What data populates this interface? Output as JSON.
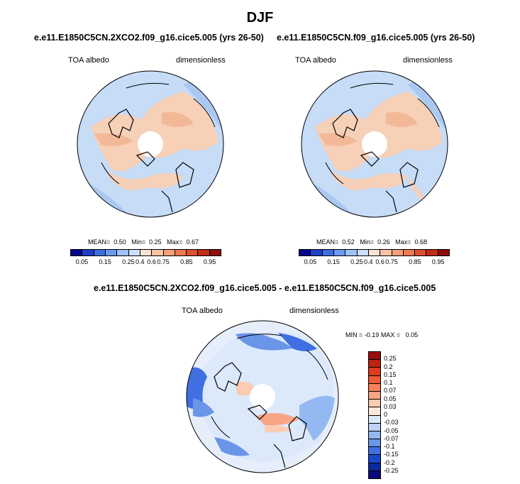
{
  "title": "DJF",
  "panels": [
    {
      "case": "e.e11.E1850C5CN.2XCO2.f09_g16.cice5.005 (yrs 26-50)",
      "variable": "TOA albedo",
      "units": "dimensionless",
      "stats": {
        "mean_label": "MEAN=",
        "mean": "0.50",
        "min_label": "Min=",
        "min": "0.25",
        "max_label": "Max=",
        "max": "0.67"
      }
    },
    {
      "case": "e.e11.E1850C5CN.f09_g16.cice5.005 (yrs 26-50)",
      "variable": "TOA albedo",
      "units": "dimensionless",
      "stats": {
        "mean_label": "MEAN=",
        "mean": "0.52",
        "min_label": "Min=",
        "min": "0.26",
        "max_label": "Max=",
        "max": "0.68"
      }
    }
  ],
  "diff_panel": {
    "case": "e.e11.E1850C5CN.2XCO2.f09_g16.cice5.005 - e.e11.E1850C5CN.f09_g16.cice5.005",
    "variable": "TOA albedo",
    "units": "dimensionless",
    "stats": {
      "min_label": "MIN =",
      "min": "-0.19",
      "max_label": "MAX =",
      "max": "0.05"
    }
  },
  "abs_colorbar": {
    "colors": [
      "#08088c",
      "#1f3fc6",
      "#3a6fe0",
      "#6a9af0",
      "#9fc2f7",
      "#cde0fb",
      "#fbe3d4",
      "#f7c4a6",
      "#f2a07a",
      "#ec7a52",
      "#dd4f2f",
      "#c02c18",
      "#8e0c0c"
    ],
    "tick_labels": [
      "0.05",
      "0.15",
      "0.25",
      "0.4",
      "0.6",
      "0.75",
      "0.85",
      "0.95"
    ]
  },
  "diff_colorbar": {
    "colors": [
      "#9a0c0c",
      "#c0230f",
      "#de3b1c",
      "#f05a34",
      "#f7805a",
      "#f9a585",
      "#fbcbb3",
      "#fce9de",
      "#dce9fb",
      "#bcd3f6",
      "#94b8f1",
      "#6a95e8",
      "#3f6fe0",
      "#1b48c8",
      "#0a2aa0",
      "#0a0a7a"
    ],
    "tick_labels": [
      "0.25",
      "0.2",
      "0.15",
      "0.1",
      "0.07",
      "0.05",
      "0.03",
      "0",
      "-0.03",
      "-0.05",
      "-0.07",
      "-0.1",
      "-0.15",
      "-0.2",
      "-0.25"
    ]
  }
}
